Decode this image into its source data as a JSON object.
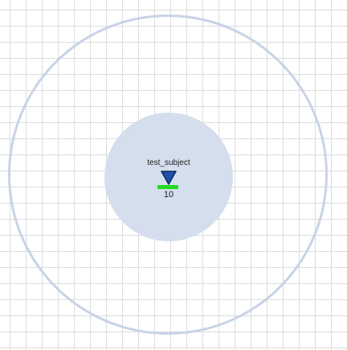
{
  "entity": {
    "name": "test_subject",
    "value": "10",
    "health_fraction": 1.0
  },
  "icons": {
    "marker": "down-triangle-icon"
  },
  "colors": {
    "grid_line": "#dcdcdc",
    "outer_ring": "#c8d3e6",
    "inner_zone": "#d4deec",
    "marker_fill": "#1f4fa8",
    "marker_stroke": "#0b2a66",
    "health_bar": "#22dd22"
  }
}
